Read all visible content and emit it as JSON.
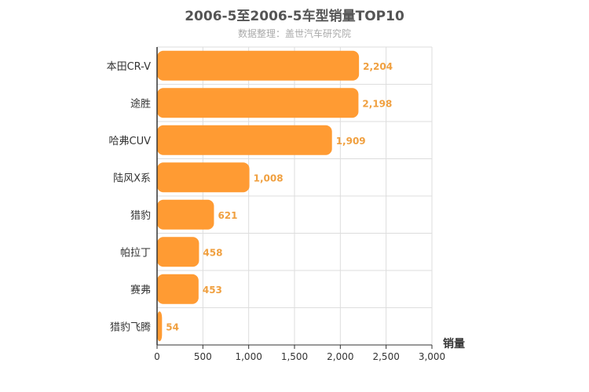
{
  "chart_data": {
    "type": "bar",
    "orientation": "horizontal",
    "title": "2006-5至2006-5车型销量TOP10",
    "subtitle": "数据整理：盖世汽车研究院",
    "categories": [
      "本田CR-V",
      "途胜",
      "哈弗CUV",
      "陆风X系",
      "猎豹",
      "帕拉丁",
      "赛弗",
      "猎豹飞腾"
    ],
    "values": [
      2204,
      2198,
      1909,
      1008,
      621,
      458,
      453,
      54
    ],
    "data_labels": [
      "2,204",
      "2,198",
      "1,909",
      "1,008",
      "621",
      "458",
      "453",
      "54"
    ],
    "xlabel": "销量",
    "ylabel": "",
    "xlim": [
      0,
      3000
    ],
    "x_ticks": [
      0,
      500,
      1000,
      1500,
      2000,
      2500,
      3000
    ],
    "x_tick_labels": [
      "0",
      "500",
      "1,000",
      "1,500",
      "2,000",
      "2,500",
      "3,000"
    ],
    "grid": true,
    "colors": {
      "bar": "#ff9b33",
      "data_label": "#f0a040",
      "grid": "#dddddd",
      "axis": "#333333"
    }
  }
}
